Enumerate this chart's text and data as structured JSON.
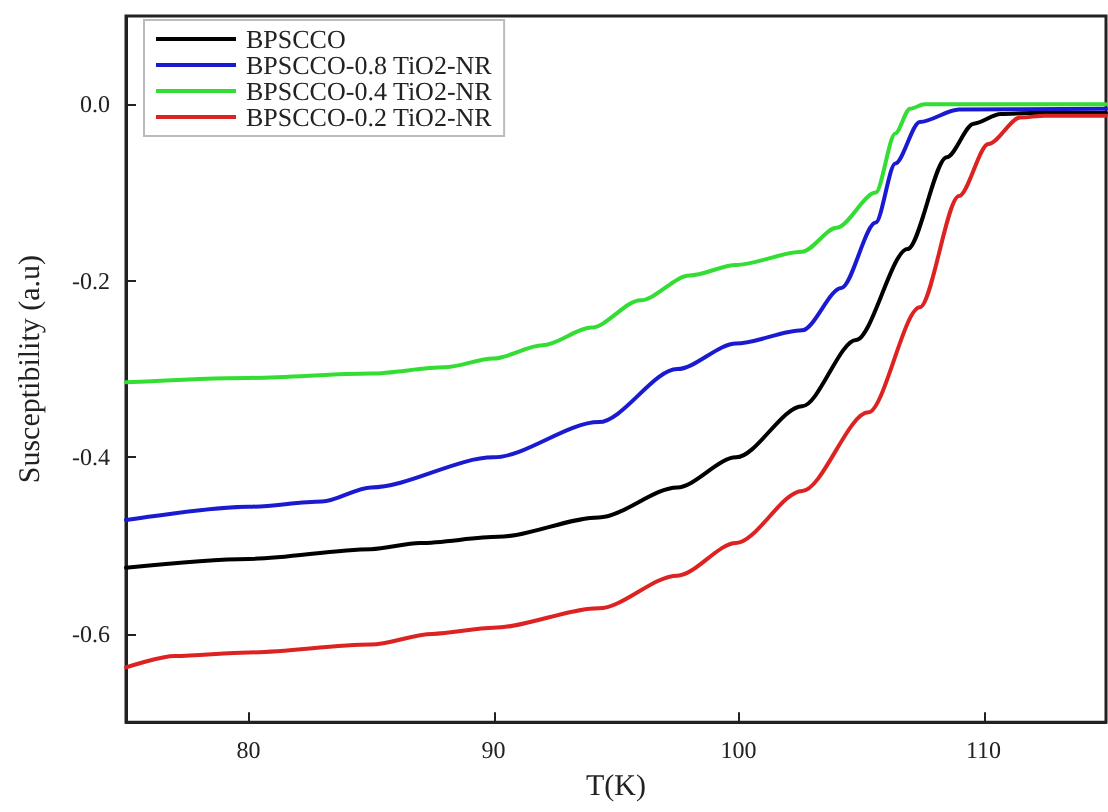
{
  "chart_data": {
    "type": "line",
    "xlabel": "T(K)",
    "ylabel": "Susceptibility (a.u)",
    "xlim": [
      75,
      115
    ],
    "ylim": [
      -0.7,
      0.1
    ],
    "xticks": [
      80,
      90,
      100,
      110
    ],
    "yticks": [
      {
        "value": -0.6,
        "label": "-0.6"
      },
      {
        "value": -0.4,
        "label": "-0.4"
      },
      {
        "value": -0.2,
        "label": "-0.2"
      },
      {
        "value": 0,
        "label": "0.0"
      }
    ],
    "grid": false,
    "legend": "top left",
    "marker": "none",
    "line_style": "solid",
    "series": [
      {
        "name": "BPSCCO",
        "color": "#000000",
        "x": [
          75,
          80,
          85,
          87,
          90.2,
          94.3,
          97.5,
          99.9,
          102.6,
          104.8,
          106.9,
          108.5,
          109.6,
          110.7,
          112,
          115
        ],
        "values": [
          -0.525,
          -0.515,
          -0.504,
          -0.497,
          -0.49,
          -0.468,
          -0.434,
          -0.4,
          -0.342,
          -0.267,
          -0.164,
          -0.06,
          -0.022,
          -0.011,
          -0.01,
          -0.01
        ]
      },
      {
        "name": "BPSCCO-0.8 TiO2-NR",
        "color": "#1a1ad0",
        "x": [
          75,
          80,
          83,
          85,
          90,
          94.3,
          97.5,
          99.9,
          102.6,
          104.2,
          105.6,
          106.4,
          107.4,
          109,
          115
        ],
        "values": [
          -0.471,
          -0.456,
          -0.45,
          -0.434,
          -0.4,
          -0.36,
          -0.3,
          -0.271,
          -0.256,
          -0.208,
          -0.134,
          -0.067,
          -0.02,
          -0.006,
          -0.005
        ]
      },
      {
        "name": "BPSCCO-0.4 TiO2-NR",
        "color": "#33dd33",
        "x": [
          75,
          80,
          85,
          88,
          90,
          92,
          94,
          96,
          98,
          99.9,
          102.6,
          104,
          105.6,
          106.4,
          107,
          107.6,
          115
        ],
        "values": [
          -0.315,
          -0.31,
          -0.305,
          -0.298,
          -0.288,
          -0.273,
          -0.253,
          -0.222,
          -0.194,
          -0.182,
          -0.167,
          -0.14,
          -0.1,
          -0.033,
          -0.005,
          0,
          0
        ]
      },
      {
        "name": "BPSCCO-0.2 TiO2-NR",
        "color": "#dd2222",
        "x": [
          75,
          77,
          80,
          85,
          87.5,
          90,
          94.3,
          97.5,
          99.9,
          102.6,
          105.3,
          107.4,
          109,
          110.2,
          111.5,
          112.5,
          115
        ],
        "values": [
          -0.638,
          -0.625,
          -0.621,
          -0.612,
          -0.6,
          -0.593,
          -0.571,
          -0.534,
          -0.497,
          -0.438,
          -0.349,
          -0.23,
          -0.104,
          -0.045,
          -0.015,
          -0.013,
          -0.013
        ]
      }
    ]
  }
}
